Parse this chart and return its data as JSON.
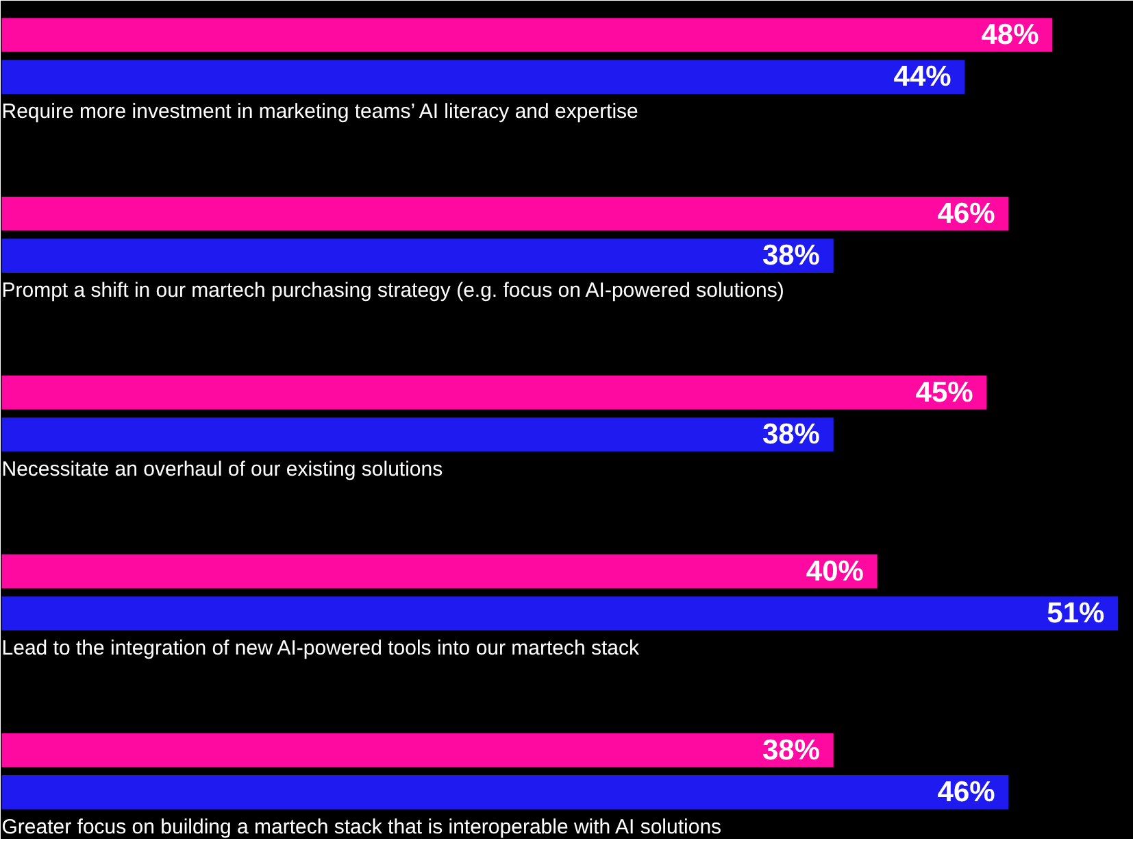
{
  "chart_data": {
    "type": "bar",
    "orientation": "horizontal",
    "tick_labels": false,
    "grid": false,
    "categories": [
      "Require more investment in marketing teams’ AI literacy and expertise",
      "Prompt a shift in our martech purchasing strategy (e.g. focus on AI-powered solutions)",
      "Necessitate an overhaul of our existing solutions",
      "Lead to the integration of new AI-powered tools into our martech stack",
      "Greater focus on building a martech stack that is interoperable with AI solutions"
    ],
    "series": [
      {
        "color": "#ff0aa0",
        "values": [
          48,
          46,
          45,
          40,
          38
        ],
        "value_labels": [
          "48%",
          "46%",
          "45%",
          "40%",
          "38%"
        ]
      },
      {
        "color": "#1f1aef",
        "values": [
          44,
          38,
          38,
          51,
          46
        ],
        "value_labels": [
          "44%",
          "38%",
          "38%",
          "51%",
          "46%"
        ]
      }
    ]
  }
}
